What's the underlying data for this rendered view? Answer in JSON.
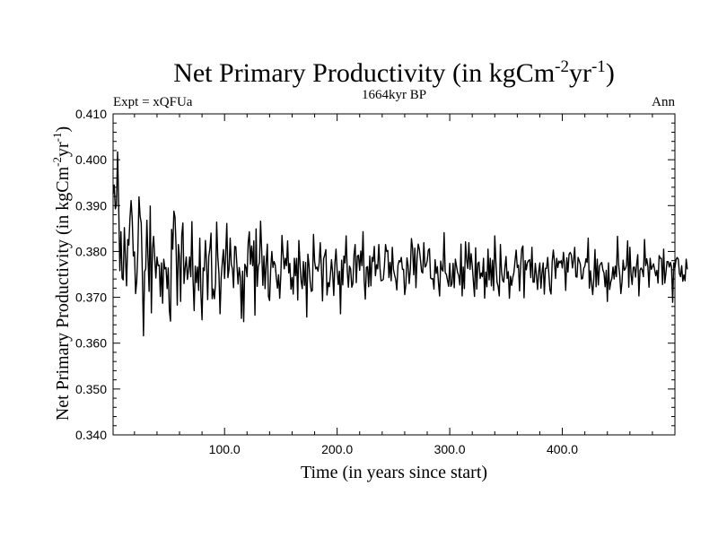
{
  "chart_data": {
    "type": "line",
    "title": {
      "main": "Net Primary Productivity (in kgCm",
      "sup1": "-2",
      "mid": "yr",
      "sup2": "-1",
      "end": ")"
    },
    "subtitle": "1664kyr BP",
    "left_label": "Expt = xQFUa",
    "right_label": "Ann",
    "xlabel": "Time (in years since start)",
    "ylabel": {
      "main": "Net Primary Productivity (in kgCm",
      "sup1": "-2",
      "mid": "yr",
      "sup2": "-1",
      "end": ")"
    },
    "xlim": [
      1,
      500
    ],
    "ylim": [
      0.34,
      0.41
    ],
    "x_ticks": [
      100,
      200,
      300,
      400
    ],
    "x_tick_labels": [
      "100.0",
      "200.0",
      "300.0",
      "400.0"
    ],
    "y_ticks": [
      0.34,
      0.35,
      0.36,
      0.37,
      0.38,
      0.39,
      0.4,
      0.41
    ],
    "y_tick_labels": [
      "0.340",
      "0.350",
      "0.360",
      "0.370",
      "0.380",
      "0.390",
      "0.400",
      "0.410"
    ],
    "grid": false,
    "series": [
      {
        "name": "Net Primary Productivity",
        "color": "#000000",
        "x_start": 1,
        "x_step": 1,
        "values": [
          0.3925,
          0.3945,
          0.3893,
          0.3902,
          0.4017,
          0.3898,
          0.3758,
          0.3843,
          0.3742,
          0.3738,
          0.3852,
          0.3786,
          0.3725,
          0.3826,
          0.3814,
          0.3873,
          0.3911,
          0.3871,
          0.379,
          0.3799,
          0.3708,
          0.3735,
          0.3801,
          0.3919,
          0.3877,
          0.3862,
          0.3751,
          0.3616,
          0.3756,
          0.3762,
          0.3868,
          0.3788,
          0.3713,
          0.3899,
          0.3666,
          0.3807,
          0.3833,
          0.3785,
          0.3742,
          0.3788,
          0.3769,
          0.377,
          0.3702,
          0.3775,
          0.3687,
          0.3783,
          0.3762,
          0.3765,
          0.3719,
          0.3764,
          0.3671,
          0.3648,
          0.3848,
          0.3805,
          0.3888,
          0.3875,
          0.3806,
          0.3683,
          0.3815,
          0.3788,
          0.3691,
          0.3836,
          0.3862,
          0.373,
          0.3765,
          0.3788,
          0.3739,
          0.376,
          0.3788,
          0.3745,
          0.3865,
          0.3739,
          0.3671,
          0.3768,
          0.3732,
          0.3766,
          0.3715,
          0.3829,
          0.3709,
          0.3651,
          0.3764,
          0.3758,
          0.3824,
          0.3777,
          0.3695,
          0.3789,
          0.3807,
          0.384,
          0.3697,
          0.3718,
          0.3697,
          0.3731,
          0.3864,
          0.3788,
          0.3753,
          0.3664,
          0.3742,
          0.3776,
          0.3804,
          0.3741,
          0.3794,
          0.3861,
          0.3743,
          0.3762,
          0.3829,
          0.3772,
          0.3762,
          0.3721,
          0.3811,
          0.381,
          0.3769,
          0.3729,
          0.3765,
          0.3745,
          0.3654,
          0.3757,
          0.3647,
          0.3772,
          0.3766,
          0.3745,
          0.3819,
          0.3843,
          0.3772,
          0.3812,
          0.3769,
          0.3823,
          0.3661,
          0.3849,
          0.3724,
          0.3767,
          0.3776,
          0.3866,
          0.38,
          0.3726,
          0.379,
          0.3719,
          0.3777,
          0.3816,
          0.3702,
          0.3693,
          0.3762,
          0.38,
          0.3765,
          0.3778,
          0.3771,
          0.3742,
          0.372,
          0.3749,
          0.3698,
          0.3749,
          0.3835,
          0.3794,
          0.3762,
          0.3785,
          0.3769,
          0.3823,
          0.3753,
          0.3774,
          0.3718,
          0.3743,
          0.3707,
          0.3785,
          0.3747,
          0.3785,
          0.3694,
          0.3824,
          0.3776,
          0.3736,
          0.3719,
          0.3778,
          0.3726,
          0.3776,
          0.3657,
          0.3794,
          0.3771,
          0.3735,
          0.3713,
          0.3715,
          0.3837,
          0.3778,
          0.3762,
          0.3766,
          0.3757,
          0.3774,
          0.3819,
          0.3765,
          0.3692,
          0.3784,
          0.3793,
          0.3804,
          0.3705,
          0.3732,
          0.3723,
          0.3749,
          0.3782,
          0.3753,
          0.3704,
          0.3774,
          0.3805,
          0.3758,
          0.3728,
          0.3757,
          0.3664,
          0.3781,
          0.3727,
          0.379,
          0.3775,
          0.3834,
          0.3757,
          0.3722,
          0.3768,
          0.3762,
          0.3722,
          0.373,
          0.3793,
          0.3815,
          0.3732,
          0.379,
          0.3792,
          0.3759,
          0.3801,
          0.3769,
          0.3843,
          0.3738,
          0.3696,
          0.3765,
          0.3767,
          0.3723,
          0.379,
          0.3725,
          0.3787,
          0.3778,
          0.3811,
          0.3747,
          0.3771,
          0.3762,
          0.3815,
          0.3765,
          0.3736,
          0.3737,
          0.3739,
          0.3769,
          0.3815,
          0.38,
          0.3802,
          0.3743,
          0.3776,
          0.3736,
          0.3809,
          0.3761,
          0.3749,
          0.3739,
          0.3716,
          0.3769,
          0.378,
          0.3777,
          0.3787,
          0.3761,
          0.3761,
          0.3706,
          0.3726,
          0.3786,
          0.3769,
          0.373,
          0.3761,
          0.3828,
          0.3807,
          0.3749,
          0.3807,
          0.3721,
          0.3786,
          0.3816,
          0.3805,
          0.3782,
          0.3756,
          0.3753,
          0.3819,
          0.3766,
          0.3769,
          0.378,
          0.3803,
          0.3806,
          0.3742,
          0.374,
          0.3741,
          0.3718,
          0.3782,
          0.3752,
          0.3767,
          0.3731,
          0.3703,
          0.3779,
          0.3761,
          0.3757,
          0.3841,
          0.3754,
          0.375,
          0.3737,
          0.3724,
          0.3774,
          0.3724,
          0.373,
          0.3774,
          0.3721,
          0.3783,
          0.3768,
          0.3754,
          0.3747,
          0.3727,
          0.3816,
          0.3703,
          0.3766,
          0.3719,
          0.3821,
          0.3782,
          0.3763,
          0.3819,
          0.3761,
          0.3795,
          0.3769,
          0.3735,
          0.3702,
          0.3808,
          0.3718,
          0.3774,
          0.3777,
          0.3741,
          0.3753,
          0.3745,
          0.3785,
          0.3698,
          0.3755,
          0.3723,
          0.3805,
          0.3738,
          0.3785,
          0.3725,
          0.3781,
          0.3715,
          0.3834,
          0.3777,
          0.3733,
          0.3724,
          0.3703,
          0.3815,
          0.3756,
          0.3737,
          0.3733,
          0.3765,
          0.3789,
          0.3741,
          0.3756,
          0.3698,
          0.3746,
          0.3726,
          0.3743,
          0.3754,
          0.378,
          0.3803,
          0.3765,
          0.377,
          0.3714,
          0.377,
          0.3806,
          0.3812,
          0.3699,
          0.378,
          0.376,
          0.3776,
          0.378,
          0.3782,
          0.3743,
          0.3809,
          0.3733,
          0.3733,
          0.3774,
          0.3747,
          0.3717,
          0.3756,
          0.3775,
          0.372,
          0.3754,
          0.3775,
          0.3707,
          0.3763,
          0.3763,
          0.3787,
          0.3752,
          0.3716,
          0.3707,
          0.3778,
          0.3803,
          0.3778,
          0.3741,
          0.3785,
          0.3765,
          0.3779,
          0.3775,
          0.378,
          0.3764,
          0.3798,
          0.3771,
          0.3715,
          0.3786,
          0.3755,
          0.3794,
          0.3798,
          0.3792,
          0.3764,
          0.3781,
          0.3809,
          0.3745,
          0.3744,
          0.3787,
          0.378,
          0.3772,
          0.374,
          0.3741,
          0.3763,
          0.3768,
          0.3784,
          0.3776,
          0.3829,
          0.372,
          0.3758,
          0.3729,
          0.3706,
          0.3742,
          0.3804,
          0.3723,
          0.3783,
          0.3727,
          0.3768,
          0.3773,
          0.3776,
          0.376,
          0.3753,
          0.3723,
          0.3759,
          0.3691,
          0.3775,
          0.3717,
          0.3733,
          0.3741,
          0.3766,
          0.374,
          0.3768,
          0.3745,
          0.3833,
          0.3772,
          0.3748,
          0.3708,
          0.3733,
          0.3781,
          0.3759,
          0.3762,
          0.377,
          0.3823,
          0.3722,
          0.3809,
          0.3751,
          0.3728,
          0.3765,
          0.3766,
          0.3744,
          0.3772,
          0.3793,
          0.3703,
          0.3759,
          0.3764,
          0.3759,
          0.3745,
          0.3826,
          0.3769,
          0.3784,
          0.3767,
          0.3722,
          0.3785,
          0.3761,
          0.3767,
          0.3773,
          0.376,
          0.3747,
          0.3759,
          0.3731,
          0.3791,
          0.3785,
          0.3785,
          0.3728,
          0.3805,
          0.3731,
          0.3753,
          0.3778,
          0.3778,
          0.3766,
          0.3776,
          0.3766,
          0.3689,
          0.3775,
          0.3764,
          0.3782,
          0.3787,
          0.3783,
          0.3752,
          0.3745,
          0.3769,
          0.3735,
          0.3749,
          0.3736,
          0.3783,
          0.3761
        ]
      }
    ]
  }
}
